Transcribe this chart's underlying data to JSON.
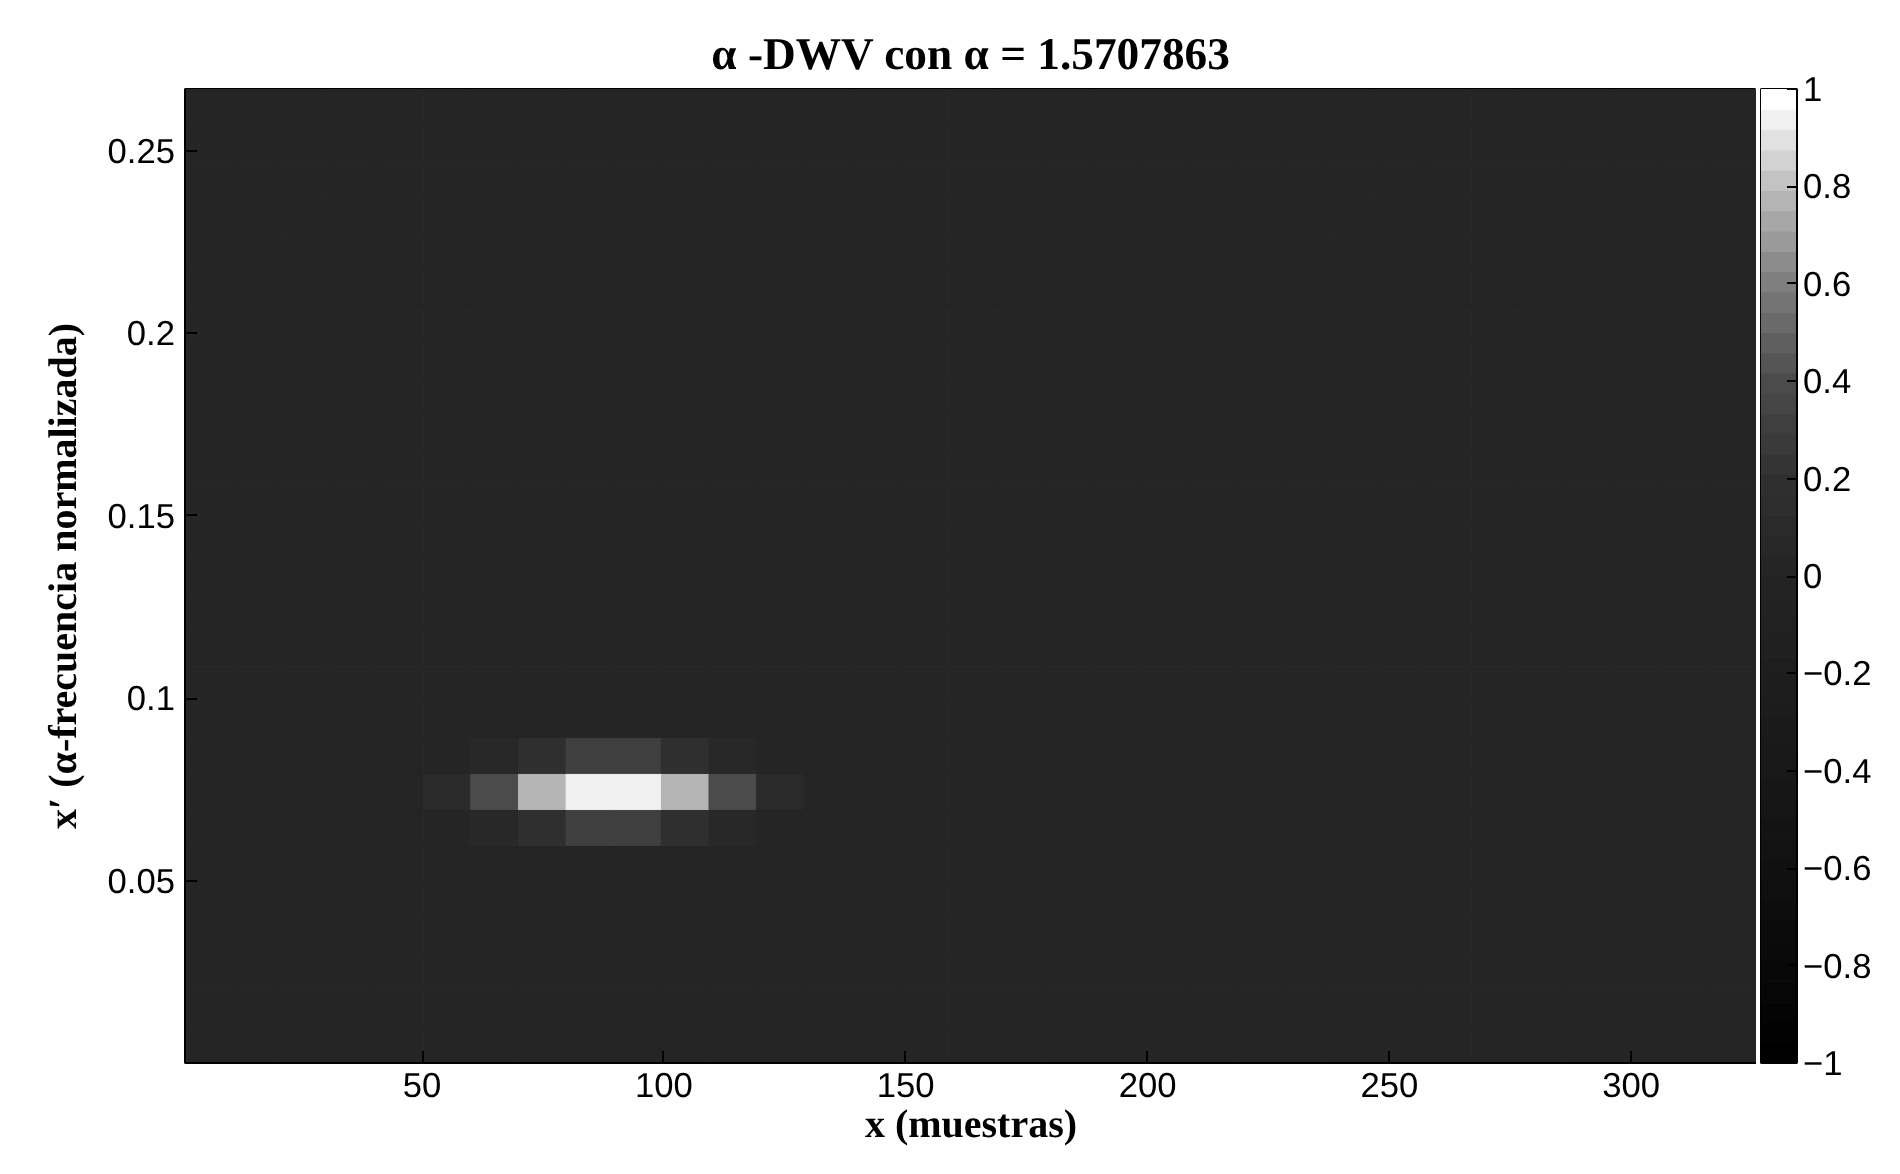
{
  "chart_data": {
    "type": "heatmap",
    "title": "α -DWV con α = 1.5707863",
    "xlabel": "x (muestras)",
    "ylabel": "x′ (α-frecuencia normalizada)",
    "xlim": [
      1,
      326
    ],
    "ylim": [
      0,
      0.267
    ],
    "xticks": [
      50,
      100,
      150,
      200,
      250,
      300
    ],
    "yticks": [
      0.05,
      0.1,
      0.15,
      0.2,
      0.25
    ],
    "clim": [
      -1,
      1
    ],
    "cticks": [
      {
        "value": -1,
        "label": "−1"
      },
      {
        "value": -0.8,
        "label": "−0.8"
      },
      {
        "value": -0.6,
        "label": "−0.6"
      },
      {
        "value": -0.4,
        "label": "−0.4"
      },
      {
        "value": -0.2,
        "label": "−0.2"
      },
      {
        "value": 0,
        "label": "0"
      },
      {
        "value": 0.2,
        "label": "0.2"
      },
      {
        "value": 0.4,
        "label": "0.4"
      },
      {
        "value": 0.6,
        "label": "0.6"
      },
      {
        "value": 0.8,
        "label": "0.8"
      },
      {
        "value": 1,
        "label": "1"
      }
    ],
    "colors": [
      "#000000",
      "#090909",
      "#111111",
      "#181818",
      "#1e1e1e",
      "#242424",
      "#303030",
      "#4a4a4a",
      "#7a7a7a",
      "#b8b8b8",
      "#ffffff"
    ],
    "cells": [
      [
        0,
        0,
        0,
        0,
        0,
        0,
        0,
        0,
        0,
        0,
        0,
        0,
        0,
        0,
        0,
        0,
        0,
        0,
        0,
        0,
        0,
        0,
        0,
        0,
        0,
        0,
        0,
        0,
        0,
        0,
        0,
        0,
        0
      ],
      [
        0,
        0,
        0,
        0,
        0,
        0,
        0,
        0,
        0,
        0,
        0,
        0,
        0,
        0,
        0,
        0,
        0,
        0,
        0,
        0,
        0,
        0,
        0,
        0,
        0,
        0,
        0,
        0,
        0,
        0,
        0,
        0,
        0
      ],
      [
        0,
        0,
        0,
        0,
        0,
        0,
        0,
        0,
        0,
        0,
        0,
        0,
        0,
        0,
        0,
        0,
        0,
        0,
        0,
        0,
        0,
        0,
        0,
        0,
        0,
        0,
        0,
        0,
        0,
        0,
        0,
        0,
        0
      ],
      [
        0,
        0,
        0,
        0,
        0,
        0,
        0,
        0,
        0,
        0,
        0,
        0,
        0,
        0,
        0,
        0,
        0,
        0,
        0,
        0,
        0,
        0,
        0,
        0,
        0,
        0,
        0,
        0,
        0,
        0,
        0,
        0,
        0
      ],
      [
        0,
        0,
        0,
        0,
        0,
        0,
        0,
        0,
        0,
        0,
        0,
        0,
        0,
        0,
        0,
        0,
        0,
        0,
        0,
        0,
        0,
        0,
        0,
        0,
        0,
        0,
        0,
        0,
        0,
        0,
        0,
        0,
        0
      ],
      [
        0,
        0,
        0,
        0,
        0,
        0,
        0,
        0,
        0,
        0,
        0,
        0,
        0,
        0,
        0,
        0,
        0,
        0,
        0,
        0,
        0,
        0,
        0,
        0,
        0,
        0,
        0,
        0,
        0,
        0,
        0,
        0,
        0
      ],
      [
        0,
        0,
        0,
        0,
        0,
        0,
        0,
        0,
        0,
        0,
        0,
        0,
        0,
        0,
        0,
        0,
        0,
        0,
        0,
        0,
        0,
        0,
        0,
        0,
        0,
        0,
        0,
        0,
        0,
        0,
        0,
        0,
        0
      ],
      [
        0,
        0,
        0,
        0,
        0,
        0,
        0,
        0,
        0,
        0,
        0,
        0,
        0,
        0,
        0,
        0,
        0,
        0,
        0,
        0,
        0,
        0,
        0,
        0,
        0,
        0,
        0,
        0,
        0,
        0,
        0,
        0,
        0
      ],
      [
        0,
        0,
        0,
        0,
        0,
        0,
        0,
        0,
        0,
        0,
        0,
        0,
        0,
        0,
        0,
        0,
        0,
        0,
        0,
        0,
        0,
        0,
        0,
        0,
        0,
        0,
        0,
        0,
        0,
        0,
        0,
        0,
        0
      ],
      [
        0,
        0,
        0,
        0,
        0,
        0,
        0,
        0,
        0,
        0,
        0,
        0,
        0,
        0,
        0,
        0,
        0,
        0,
        0,
        0,
        0,
        0,
        0,
        0,
        0,
        0,
        0,
        0,
        0,
        0,
        0,
        0,
        0
      ],
      [
        0,
        0,
        0,
        0,
        0,
        0,
        0,
        0,
        0,
        0,
        0,
        0,
        0,
        0,
        0,
        0,
        0,
        0,
        0,
        0,
        0,
        0,
        0,
        0,
        0,
        0,
        0,
        0,
        0,
        0,
        0,
        0,
        0
      ],
      [
        0,
        0,
        0,
        0,
        0,
        0,
        0,
        0,
        0,
        0,
        0,
        0,
        0,
        0,
        0,
        0,
        0,
        0,
        0,
        0,
        0,
        0,
        0,
        0,
        0,
        0,
        0,
        0,
        0,
        0,
        0,
        0,
        0
      ],
      [
        0,
        0,
        0,
        0,
        0,
        0,
        0,
        0,
        0,
        0,
        0,
        0,
        0,
        0,
        0,
        0,
        0,
        0,
        0,
        0,
        0,
        0,
        0,
        0,
        0,
        0,
        0,
        0,
        0,
        0,
        0,
        0,
        0
      ],
      [
        0,
        0,
        0,
        0,
        0,
        0,
        0,
        0,
        0,
        0,
        0,
        0,
        0,
        0,
        0,
        0,
        0,
        0,
        0,
        0,
        0,
        0,
        0,
        0,
        0,
        0,
        0,
        0,
        0,
        0,
        0,
        0,
        0
      ],
      [
        0,
        0,
        0,
        0,
        0,
        0,
        0,
        0,
        0,
        0,
        0,
        0,
        0,
        0,
        0,
        0,
        0,
        0,
        0,
        0,
        0,
        0,
        0,
        0,
        0,
        0,
        0,
        0,
        0,
        0,
        0,
        0,
        0
      ],
      [
        0,
        0,
        0,
        0,
        0,
        0,
        0,
        0,
        0,
        0,
        0,
        0,
        0,
        0,
        0,
        0,
        0,
        0,
        0,
        0,
        0,
        0,
        0,
        0,
        0,
        0,
        0,
        0,
        0,
        0,
        0,
        0,
        0
      ],
      [
        0,
        0,
        0,
        0,
        0,
        0,
        0,
        0,
        0,
        0,
        0,
        0,
        0,
        0,
        0,
        0,
        0,
        0,
        0,
        0,
        0,
        0,
        0,
        0,
        0,
        0,
        0,
        0,
        0,
        0,
        0,
        0,
        0
      ],
      [
        0,
        0,
        0,
        0,
        0,
        0,
        0,
        0,
        0,
        0,
        0,
        0,
        0,
        0,
        0,
        0,
        0,
        0,
        0,
        0,
        0,
        0,
        0,
        0,
        0,
        0,
        0,
        0,
        0,
        0,
        0,
        0,
        0
      ],
      [
        0,
        0,
        0,
        0,
        0,
        0,
        0.05,
        0.2,
        0.3,
        0.3,
        0.2,
        0.05,
        0,
        0,
        0,
        0,
        0,
        0,
        0,
        0,
        0,
        0,
        0,
        0,
        0,
        0,
        0,
        0,
        0,
        0,
        0,
        0,
        0
      ],
      [
        0,
        0,
        0,
        0,
        0,
        0.1,
        0.4,
        0.75,
        0.95,
        0.95,
        0.75,
        0.4,
        0.1,
        0,
        0,
        0,
        0,
        0,
        0,
        0,
        0,
        0,
        0,
        0,
        0,
        0,
        0,
        0,
        0,
        0,
        0,
        0,
        0
      ],
      [
        0,
        0,
        0,
        0,
        0,
        0,
        0.05,
        0.2,
        0.3,
        0.3,
        0.2,
        0.05,
        0,
        0,
        0,
        0,
        0,
        0,
        0,
        0,
        0,
        0,
        0,
        0,
        0,
        0,
        0,
        0,
        0,
        0,
        0,
        0,
        0
      ],
      [
        0,
        0,
        0,
        0,
        0,
        0,
        0,
        0,
        0,
        0,
        0,
        0,
        0,
        0,
        0,
        0,
        0,
        0,
        0,
        0,
        0,
        0,
        0,
        0,
        0,
        0,
        0,
        0,
        0,
        0,
        0,
        0,
        0
      ],
      [
        0,
        0,
        0,
        0,
        0,
        0,
        0,
        0,
        0,
        0,
        0,
        0,
        0,
        0,
        0,
        0,
        0,
        0,
        0,
        0,
        0,
        0,
        0,
        0,
        0,
        0,
        0,
        0,
        0,
        0,
        0,
        0,
        0
      ],
      [
        0,
        0,
        0,
        0,
        0,
        0,
        0,
        0,
        0,
        0,
        0,
        0,
        0,
        0,
        0,
        0,
        0,
        0,
        0,
        0,
        0,
        0,
        0,
        0,
        0,
        0,
        0,
        0,
        0,
        0,
        0,
        0,
        0
      ],
      [
        0,
        0,
        0,
        0,
        0,
        0,
        0,
        0,
        0,
        0,
        0,
        0,
        0,
        0,
        0,
        0,
        0,
        0,
        0,
        0,
        0,
        0,
        0,
        0,
        0,
        0,
        0,
        0,
        0,
        0,
        0,
        0,
        0
      ],
      [
        0,
        0,
        0,
        0,
        0,
        0,
        0,
        0,
        0,
        0,
        0,
        0,
        0,
        0,
        0,
        0,
        0,
        0,
        0,
        0,
        0,
        0,
        0,
        0,
        0,
        0,
        0,
        0,
        0,
        0,
        0,
        0,
        0
      ],
      [
        0,
        0,
        0,
        0,
        0,
        0,
        0,
        0,
        0,
        0,
        0,
        0,
        0,
        0,
        0,
        0,
        0,
        0,
        0,
        0,
        0,
        0,
        0,
        0,
        0,
        0,
        0,
        0,
        0,
        0,
        0,
        0,
        0
      ]
    ]
  }
}
